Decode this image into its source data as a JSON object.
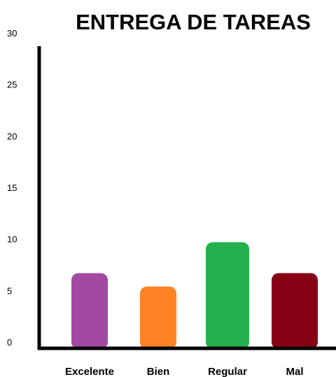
{
  "chart_data": {
    "type": "bar",
    "title": "ENTREGA DE TAREAS",
    "xlabel": "",
    "ylabel": "",
    "categories": [
      "Excelente",
      "Bien",
      "Regular",
      "Mal"
    ],
    "values": [
      7.3,
      6,
      10.3,
      7.3
    ],
    "colors": [
      "#A24AA2",
      "#FF8224",
      "#23B14D",
      "#880015"
    ],
    "ylim": [
      0,
      30
    ],
    "yticks": [
      0,
      5,
      10,
      15,
      20,
      25,
      30
    ],
    "grid": false,
    "legend": "none"
  }
}
